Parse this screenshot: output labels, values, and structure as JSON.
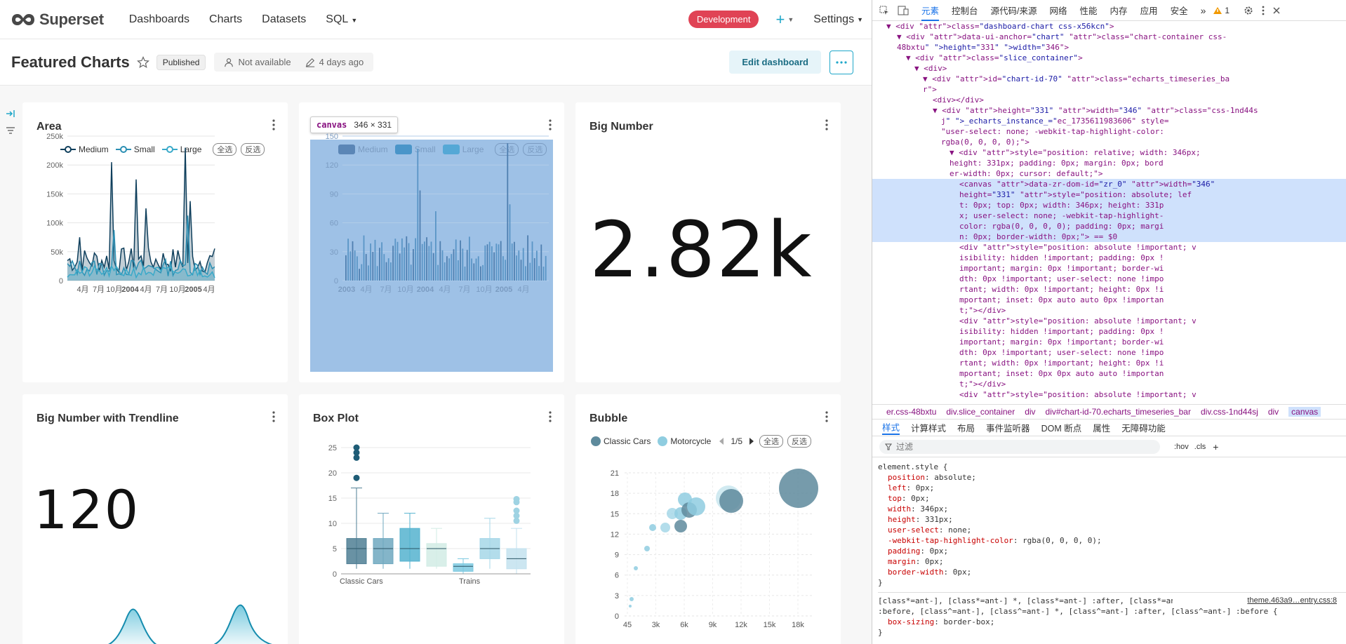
{
  "nav": {
    "logo_text": "Superset",
    "links": [
      "Dashboards",
      "Charts",
      "Datasets",
      "SQL"
    ],
    "env_badge": "Development",
    "plus": "+",
    "settings": "Settings"
  },
  "header": {
    "title": "Featured Charts",
    "status": "Published",
    "owner": "Not available",
    "modified": "4 days ago",
    "edit_button": "Edit dashboard"
  },
  "inspect_tooltip": {
    "tag": "canvas",
    "size": "346 × 331"
  },
  "cards": {
    "area": {
      "title": "Area",
      "legend": [
        "Medium",
        "Small",
        "Large"
      ],
      "select_all": "全选",
      "invert": "反选",
      "y_ticks": [
        "250k",
        "200k",
        "150k",
        "100k",
        "50k",
        "0"
      ],
      "x_ticks": [
        "4月",
        "7月",
        "10月",
        "2004",
        "4月",
        "7月",
        "10月",
        "2005",
        "4月"
      ]
    },
    "bar": {
      "legend": [
        "Medium",
        "Small",
        "Large"
      ],
      "select_all": "全选",
      "invert": "反选",
      "y_ticks": [
        "150",
        "120",
        "90",
        "60",
        "30",
        "0"
      ],
      "x_ticks": [
        "2003",
        "4月",
        "7月",
        "10月",
        "2004",
        "4月",
        "7月",
        "10月",
        "2005",
        "4月"
      ]
    },
    "big_number": {
      "title": "Big Number",
      "value": "2.82k"
    },
    "trendline": {
      "title": "Big Number with Trendline",
      "value": "120"
    },
    "box": {
      "title": "Box Plot",
      "y_ticks": [
        "25",
        "20",
        "15",
        "10",
        "5",
        "0"
      ],
      "x_labels": [
        "Classic Cars",
        "Trains"
      ]
    },
    "bubble": {
      "title": "Bubble",
      "legend": [
        "Classic Cars",
        "Motorcycle"
      ],
      "page": "1/5",
      "select_all": "全选",
      "invert": "反选",
      "y_ticks": [
        "21",
        "18",
        "15",
        "12",
        "9",
        "6",
        "3",
        "0"
      ],
      "x_ticks": [
        "45",
        "3k",
        "6k",
        "9k",
        "12k",
        "15k",
        "18k"
      ]
    }
  },
  "colors": {
    "accent": "#20a7c9",
    "badge": "#e04355",
    "dark": "#1f5f7a",
    "mid": "#2b9bbf",
    "light": "#7fc8dd"
  },
  "devtools": {
    "tabs": [
      "元素",
      "控制台",
      "源代码/来源",
      "网络",
      "性能",
      "内存",
      "应用",
      "安全"
    ],
    "warn_count": "1",
    "dom_lines": [
      "<div class=\"dashboard-chart css-x56kcn\">",
      "<div data-ui-anchor=\"chart\" class=\"chart-container css-",
      "48bxtu\" height=\"331\" width=\"346\">",
      "<div class=\"slice_container\">",
      "<div>",
      "<div id=\"chart-id-70\" class=\"echarts_timeseries_ba",
      "r\">",
      "<div></div>",
      "<div height=\"331\" width=\"346\" class=\"css-1nd44s",
      "j\" _echarts_instance_=\"ec_1735611983606\" style=",
      "\"user-select: none; -webkit-tap-highlight-color:",
      "rgba(0, 0, 0, 0);\">",
      "<div style=\"position: relative; width: 346px;",
      "height: 331px; padding: 0px; margin: 0px; bord",
      "er-width: 0px; cursor: default;\">",
      "<canvas data-zr-dom-id=\"zr_0\" width=\"346\"",
      "height=\"331\" style=\"position: absolute; lef",
      "t: 0px; top: 0px; width: 346px; height: 331p",
      "x; user-select: none; -webkit-tap-highlight-",
      "color: rgba(0, 0, 0, 0); padding: 0px; margi",
      "n: 0px; border-width: 0px;\"> == $0",
      "<div style=\"position: absolute !important; v",
      "isibility: hidden !important; padding: 0px !",
      "important; margin: 0px !important; border-wi",
      "dth: 0px !important; user-select: none !impo",
      "rtant; width: 0px !important; height: 0px !i",
      "mportant; inset: 0px auto auto 0px !importan",
      "t;\"></div>",
      "<div style=\"position: absolute !important; v",
      "isibility: hidden !important; padding: 0px !",
      "important; margin: 0px !important; border-wi",
      "dth: 0px !important; user-select: none !impo",
      "rtant; width: 0px !important; height: 0px !i",
      "mportant; inset: 0px 0px auto auto !importan",
      "t;\"></div>",
      "<div style=\"position: absolute !important; v"
    ],
    "crumbs": [
      "er.css-48bxtu",
      "div.slice_container",
      "div",
      "div#chart-id-70.echarts_timeseries_bar",
      "div.css-1nd44sj",
      "div",
      "canvas"
    ],
    "style_tabs": [
      "样式",
      "计算样式",
      "布局",
      "事件监听器",
      "DOM 断点",
      "属性",
      "无障碍功能"
    ],
    "filter_placeholder": "过滤",
    "filter_tools": [
      ":hov",
      ".cls"
    ],
    "element_style_selector": "element.style {",
    "props": [
      [
        "position",
        "absolute;"
      ],
      [
        "left",
        "0px;"
      ],
      [
        "top",
        "0px;"
      ],
      [
        "width",
        "346px;"
      ],
      [
        "height",
        "331px;"
      ],
      [
        "user-select",
        "none;"
      ],
      [
        "-webkit-tap-highlight-color",
        "rgba(0, 0, 0, 0);"
      ],
      [
        "padding",
        "0px;"
      ],
      [
        "margin",
        "0px;"
      ],
      [
        "border-width",
        "0px;"
      ]
    ],
    "close_brace": "}",
    "rule2_selector": "[class*=ant-], [class*=ant-] *, [class*=ant-] :after, [class*=ant-]",
    "rule2_selector_2": ":before, [class^=ant-], [class^=ant-] *, [class^=ant-] :after, [class^=ant-] :before {",
    "rule2_source": "theme.463a9…entry.css:8",
    "rule2_prop": [
      "box-sizing",
      "border-box;"
    ]
  }
}
